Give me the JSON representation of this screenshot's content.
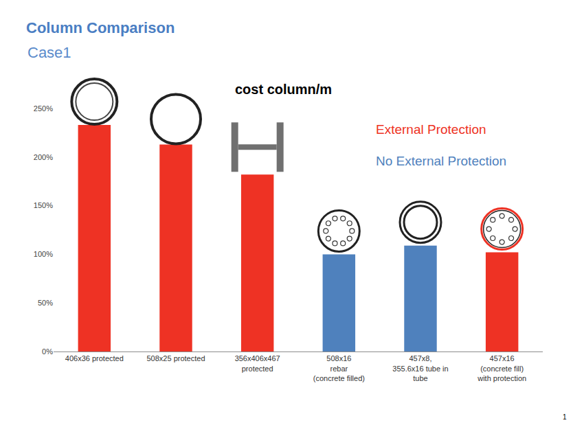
{
  "chart_data": {
    "type": "bar",
    "title": "Column Comparison",
    "subtitle": "Case1",
    "categories": [
      "406x36 protected",
      "508x25 protected",
      "356x406x467\nprotected",
      "508x16\nrebar\n(concrete filled)",
      "457x8,\n355.6x16 tube in\ntube",
      "457x16\n(concrete fill)\nwith protection"
    ],
    "values": [
      233,
      213,
      182,
      100,
      109,
      102
    ],
    "colors": [
      "#EE3224",
      "#EE3224",
      "#EE3224",
      "#4F81BD",
      "#4F81BD",
      "#EE3224"
    ],
    "ylim": [
      0,
      250
    ],
    "yticks": [
      {
        "value": 0,
        "label": "0%"
      },
      {
        "value": 50,
        "label": "50%"
      },
      {
        "value": 100,
        "label": "100%"
      },
      {
        "value": 150,
        "label": "150%"
      },
      {
        "value": 200,
        "label": "200%"
      },
      {
        "value": 250,
        "label": "250%"
      }
    ],
    "grid": false,
    "annotations": [
      {
        "text": "cost column/m"
      },
      {
        "text": "External Protection",
        "color": "#EE3224"
      },
      {
        "text": "No External Protection",
        "color": "#4F81BD"
      },
      {
        "text": "1"
      }
    ]
  }
}
